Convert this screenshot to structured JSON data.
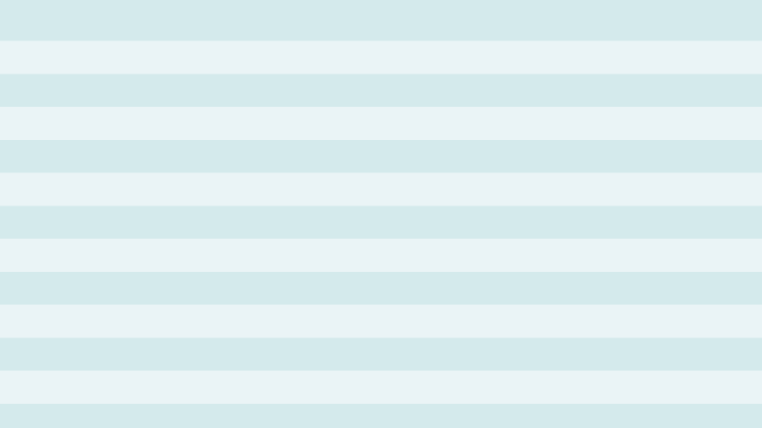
{
  "background": {
    "pattern": "horizontal-stripes",
    "colors": {
      "light": "#EAF4F6",
      "dark": "#D4EAEC"
    }
  }
}
